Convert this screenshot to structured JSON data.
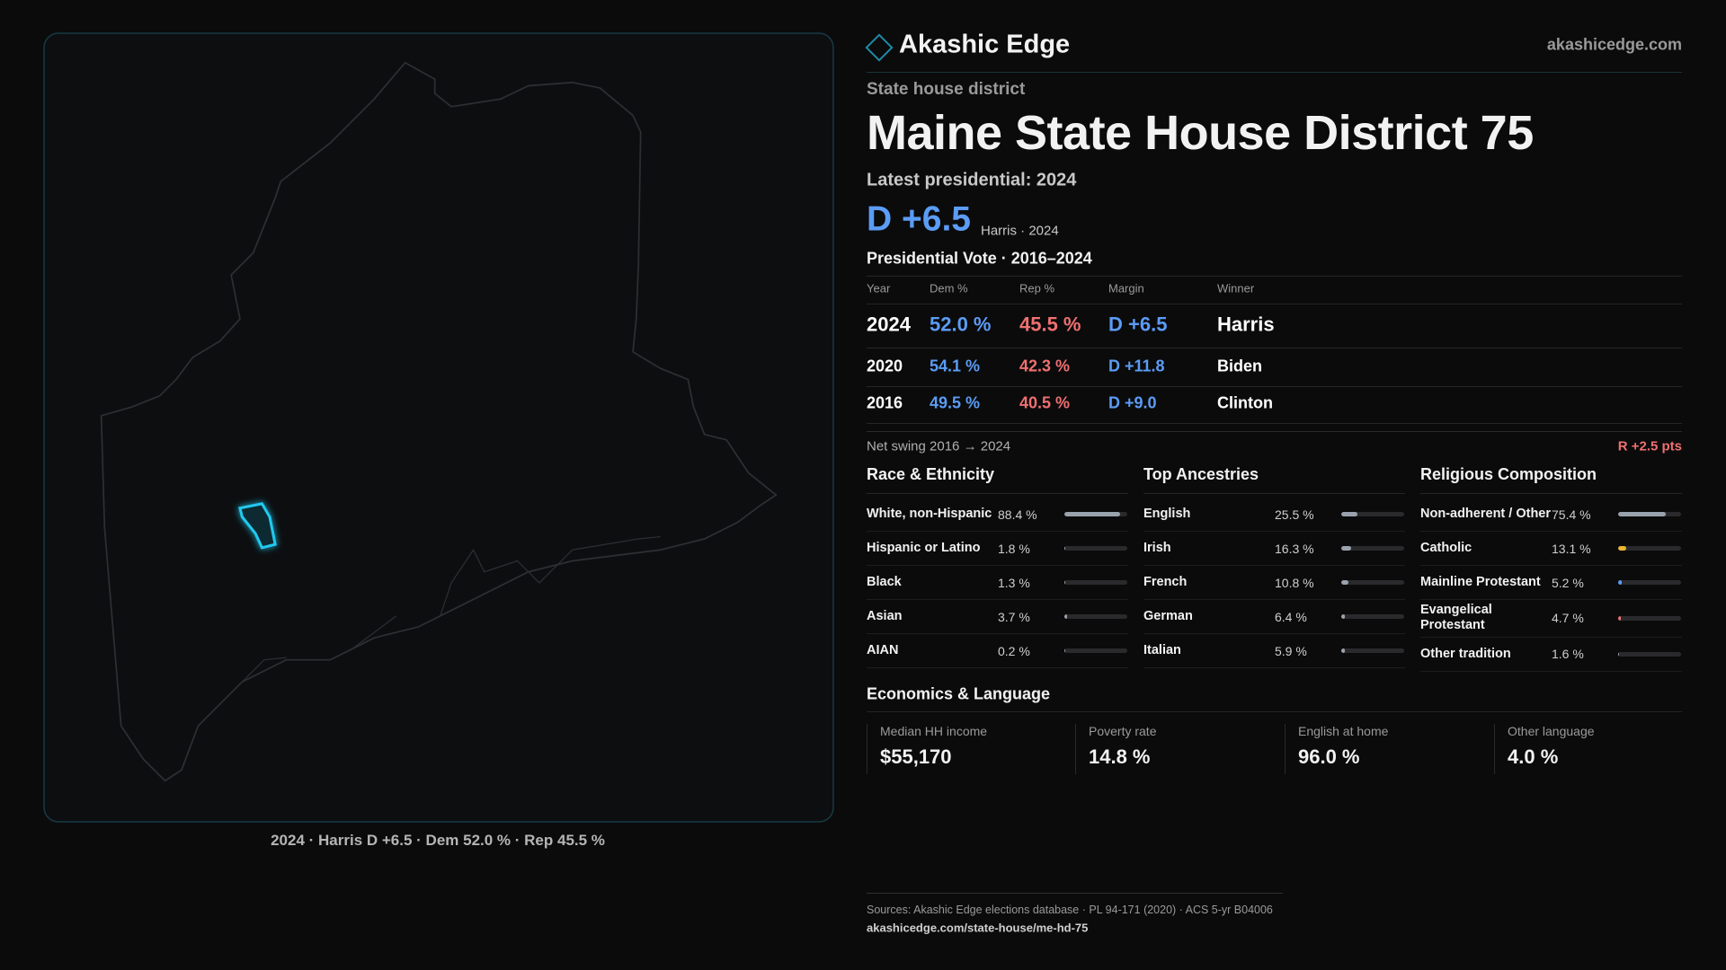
{
  "header": {
    "brand": "Akashic Edge",
    "site": "akashicedge.com"
  },
  "district": {
    "kind": "State house district",
    "title": "Maine State House District 75",
    "latest": "Latest presidential: 2024",
    "margin": "D +6.5",
    "margin_note": "Harris · 2024"
  },
  "map": {
    "caption": "2024 · Harris D +6.5 · Dem 52.0 % · Rep 45.5 %"
  },
  "vote_table": {
    "title": "Presidential Vote · 2016–2024",
    "columns": [
      "Year",
      "Dem %",
      "Rep %",
      "Margin",
      "Winner"
    ],
    "rows": [
      [
        "2024",
        "52.0 %",
        "45.5 %",
        "D +6.5",
        "Harris"
      ],
      [
        "2020",
        "54.1 %",
        "42.3 %",
        "D +11.8",
        "Biden"
      ],
      [
        "2016",
        "49.5 %",
        "40.5 %",
        "D +9.0",
        "Clinton"
      ]
    ]
  },
  "swing": {
    "label": "Net swing 2016 → 2024",
    "value": "R +2.5 pts"
  },
  "race": {
    "title": "Race & Ethnicity",
    "items": [
      {
        "label": "White, non-Hispanic",
        "value": 88.4,
        "value_label": "88.4 %"
      },
      {
        "label": "Hispanic or Latino",
        "value": 1.8,
        "value_label": "1.8 %"
      },
      {
        "label": "Black",
        "value": 1.3,
        "value_label": "1.3 %"
      },
      {
        "label": "Asian",
        "value": 3.7,
        "value_label": "3.7 %"
      },
      {
        "label": "AIAN",
        "value": 0.2,
        "value_label": "0.2 %"
      }
    ]
  },
  "ancestry": {
    "title": "Top Ancestries",
    "items": [
      {
        "label": "English",
        "value": 25.5,
        "value_label": "25.5 %"
      },
      {
        "label": "Irish",
        "value": 16.3,
        "value_label": "16.3 %"
      },
      {
        "label": "French",
        "value": 10.8,
        "value_label": "10.8 %"
      },
      {
        "label": "German",
        "value": 6.4,
        "value_label": "6.4 %"
      },
      {
        "label": "Italian",
        "value": 5.9,
        "value_label": "5.9 %"
      }
    ]
  },
  "religion": {
    "title": "Religious Composition",
    "items": [
      {
        "label": "Non-adherent / Other",
        "value": 75.4,
        "value_label": "75.4 %",
        "color": "#9aa3ad"
      },
      {
        "label": "Catholic",
        "value": 13.1,
        "value_label": "13.1 %",
        "color": "#e8b630"
      },
      {
        "label": "Mainline Protestant",
        "value": 5.2,
        "value_label": "5.2 %",
        "color": "#5b9cf5"
      },
      {
        "label": "Evangelical Protestant",
        "value": 4.7,
        "value_label": "4.7 %",
        "color": "#f07070"
      },
      {
        "label": "Other tradition",
        "value": 1.6,
        "value_label": "1.6 %",
        "color": "#9aa3ad"
      }
    ]
  },
  "economics": {
    "title": "Economics & Language",
    "cards": [
      {
        "label": "Median HH income",
        "value": "$55,170"
      },
      {
        "label": "Poverty rate",
        "value": "14.8 %"
      },
      {
        "label": "English at home",
        "value": "96.0 %"
      },
      {
        "label": "Other language",
        "value": "4.0 %"
      }
    ]
  },
  "footer": {
    "sources": "Sources: Akashic Edge elections database · PL 94-171 (2020) · ACS 5-yr B04006",
    "url": "akashicedge.com/state-house/me-hd-75"
  }
}
